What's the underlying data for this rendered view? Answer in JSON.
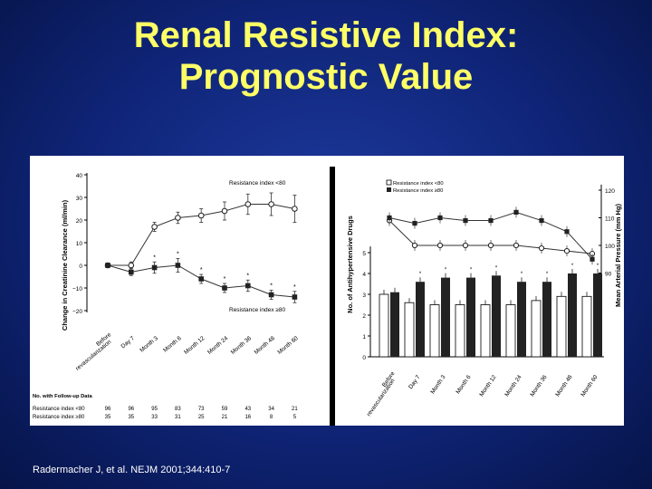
{
  "slide": {
    "title_line1": "Renal Resistive Index:",
    "title_line2": "Prognostic Value",
    "citation": "Radermacher J, et al. NEJM 2001;344:410-7"
  },
  "colors": {
    "title": "#ffff66",
    "background": "#0f2477",
    "panel": "#ffffff"
  },
  "chart_data": [
    {
      "type": "line",
      "ylabel": "Change in Creatinine Clearance (ml/min)",
      "ylim": [
        -20,
        40
      ],
      "yticks": [
        -20,
        -10,
        0,
        10,
        20,
        30,
        40
      ],
      "categories": [
        "Before revascularization",
        "Day 7",
        "Month 3",
        "Month 6",
        "Month 12",
        "Month 24",
        "Month 36",
        "Month 48",
        "Month 60"
      ],
      "series": [
        {
          "name": "Resistance index <80",
          "label": "Resistance index <80",
          "marker": "open-circle",
          "values": [
            0,
            0,
            17,
            21,
            22,
            24,
            27,
            27,
            25
          ],
          "err": [
            0,
            1.5,
            2,
            2.5,
            3,
            4,
            4.5,
            5,
            6
          ]
        },
        {
          "name": "Resistance index ≥80",
          "label": "Resistance index ≥80",
          "marker": "filled-square",
          "values": [
            0,
            -3,
            -1,
            0,
            -6,
            -10,
            -9,
            -13,
            -14
          ],
          "err": [
            0,
            1.5,
            2.5,
            3,
            2,
            2,
            2.5,
            2,
            2.5
          ]
        }
      ],
      "significance": [
        "",
        "",
        "*",
        "*",
        "*",
        "*",
        "*",
        "*",
        "*"
      ],
      "followup": {
        "heading": "No. with Follow-up Data",
        "rows": [
          {
            "label": "Resistance index <80",
            "values": [
              "96",
              "96",
              "95",
              "83",
              "73",
              "59",
              "43",
              "34",
              "21"
            ]
          },
          {
            "label": "Resistance index ≥80",
            "values": [
              "35",
              "35",
              "33",
              "31",
              "25",
              "21",
              "16",
              "8",
              "5"
            ]
          }
        ]
      }
    },
    {
      "type": "bar",
      "ylabel": "No. of Antihypertensive Drugs",
      "y2label": "Mean Arterial Pressure (mm Hg)",
      "ylim": [
        0,
        6
      ],
      "yticks": [
        0,
        1,
        2,
        3,
        4,
        5
      ],
      "y2lim": [
        78,
        122
      ],
      "y2ticks": [
        90,
        100,
        110,
        120
      ],
      "legend": [
        "Resistance index <80",
        "Resistance index ≥80"
      ],
      "categories": [
        "Before revascularization",
        "Day 7",
        "Month 3",
        "Month 6",
        "Month 12",
        "Month 24",
        "Month 36",
        "Month 48",
        "Month 60"
      ],
      "bars_lt80": [
        3.0,
        2.6,
        2.5,
        2.5,
        2.5,
        2.5,
        2.7,
        2.9,
        2.9
      ],
      "bars_ge80": [
        3.1,
        3.6,
        3.8,
        3.8,
        3.9,
        3.6,
        3.6,
        4.0,
        4.0
      ],
      "map_lt80": [
        109,
        100,
        100,
        100,
        100,
        100,
        99,
        98,
        97
      ],
      "map_ge80": [
        110,
        108,
        110,
        109,
        109,
        112,
        109,
        105,
        95
      ],
      "bar_significance": [
        "",
        "*",
        "*",
        "*",
        "*",
        "*",
        "*",
        "*",
        "*"
      ]
    }
  ]
}
